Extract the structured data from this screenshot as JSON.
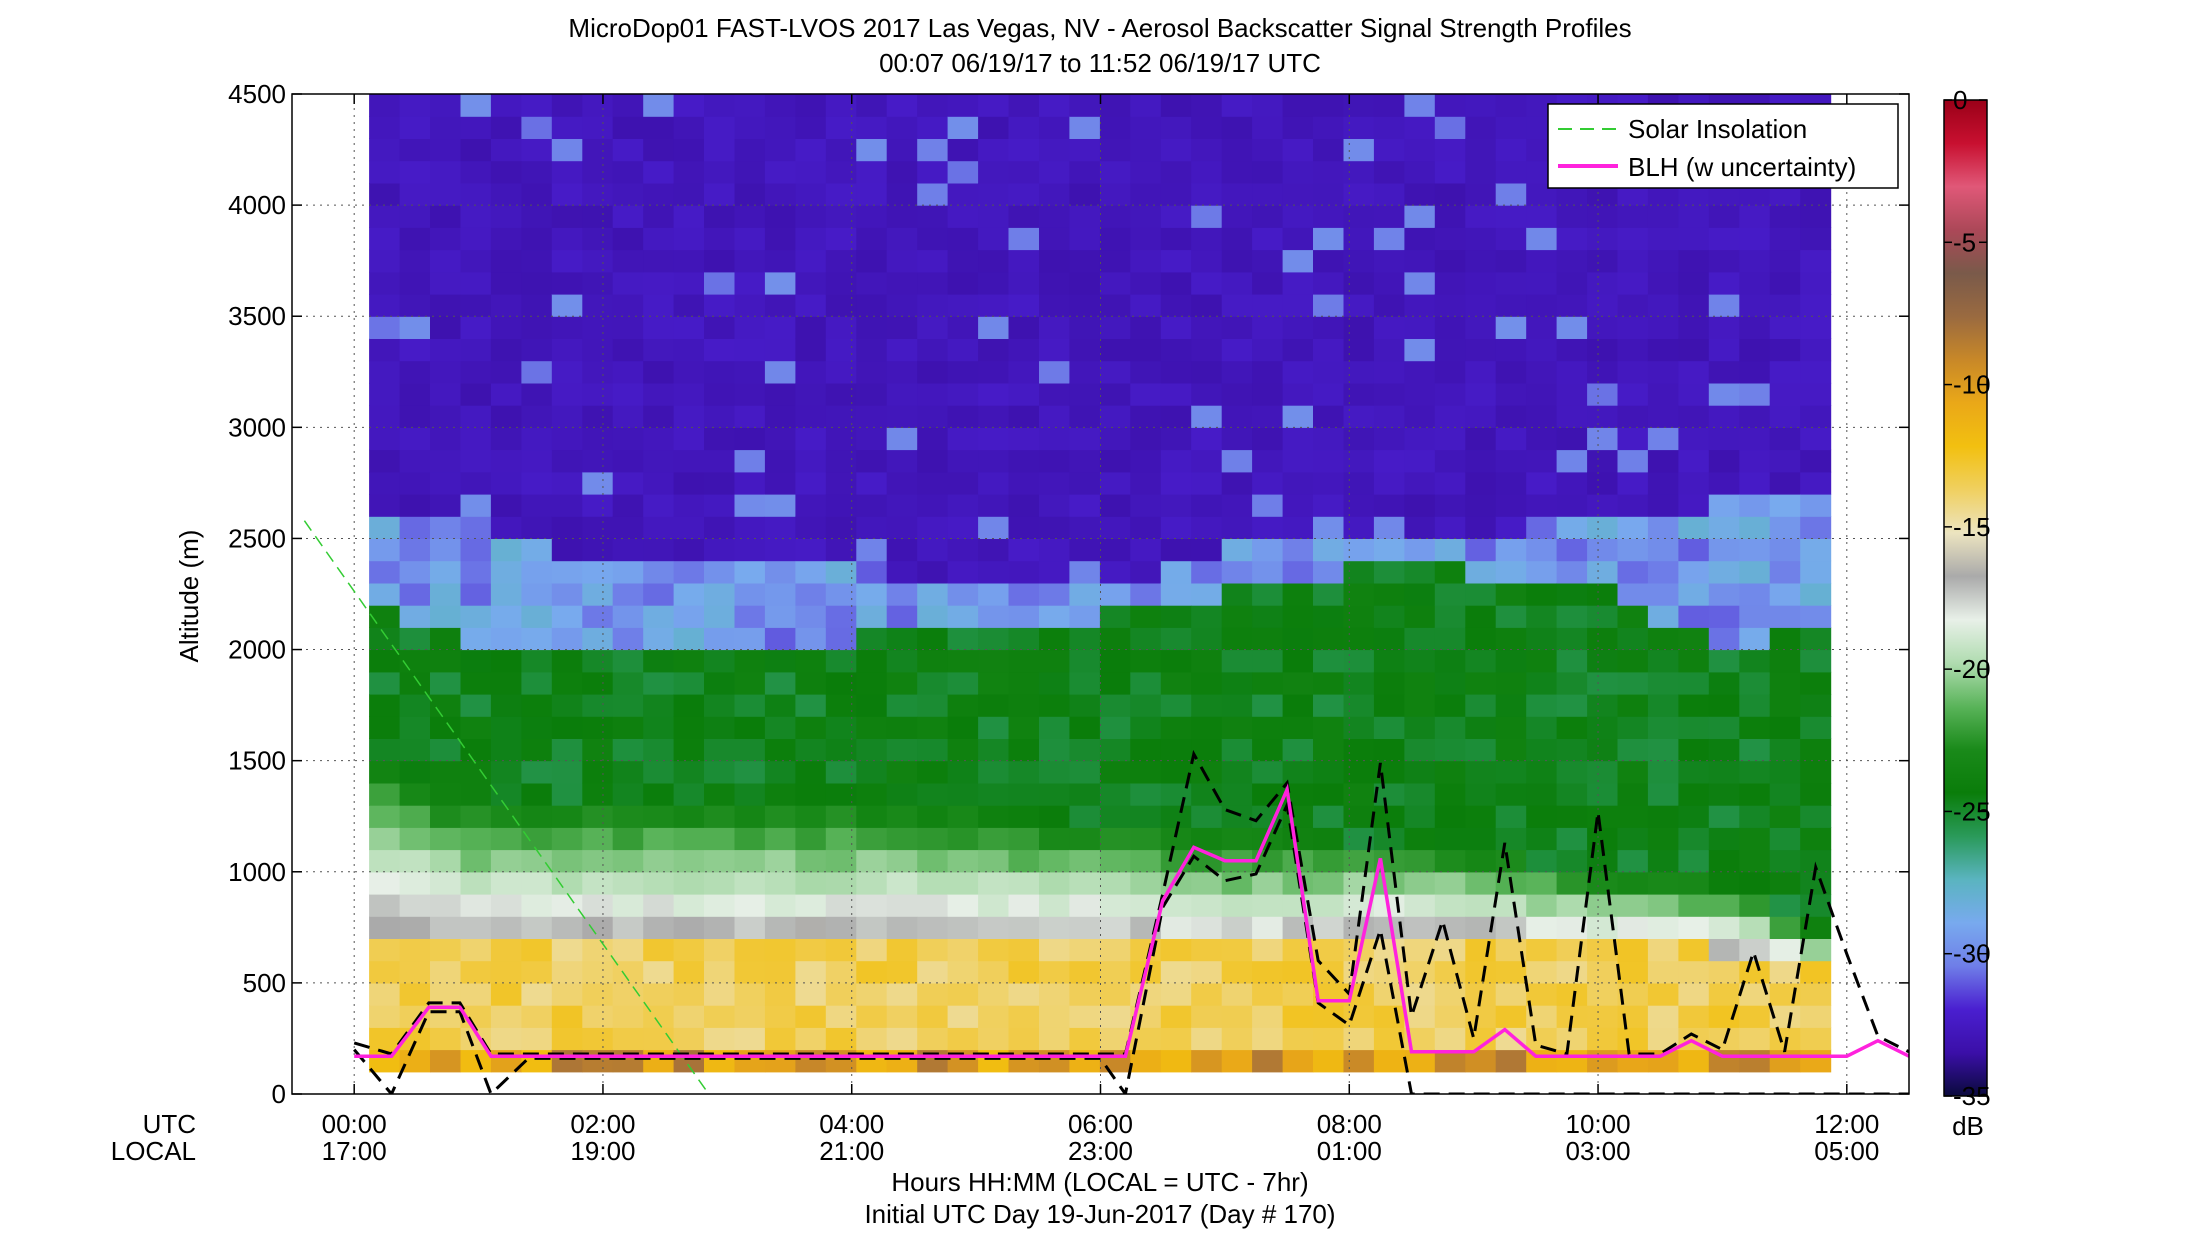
{
  "chart_data": {
    "type": "heatmap",
    "title_line1": "MicroDop01 FAST-LVOS 2017 Las Vegas, NV - Aerosol Backscatter Signal Strength Profiles",
    "title_line2": "00:07 06/19/17 to 11:52 06/19/17  UTC",
    "ylabel": "Altitude (m)",
    "xlabel": "Hours HH:MM  (LOCAL = UTC - 7hr)",
    "subtitle": "Initial UTC Day 19-Jun-2017 (Day # 170)",
    "utc_row_label": "UTC",
    "local_row_label": "LOCAL",
    "xlim_hours": [
      -0.5,
      12.5
    ],
    "ylim": [
      0,
      4500
    ],
    "grid": true,
    "y_ticks": [
      0,
      500,
      1000,
      1500,
      2000,
      2500,
      3000,
      3500,
      4000,
      4500
    ],
    "x_ticks": [
      {
        "hour": 0,
        "utc": "00:00",
        "local": "17:00"
      },
      {
        "hour": 2,
        "utc": "02:00",
        "local": "19:00"
      },
      {
        "hour": 4,
        "utc": "04:00",
        "local": "21:00"
      },
      {
        "hour": 6,
        "utc": "06:00",
        "local": "23:00"
      },
      {
        "hour": 8,
        "utc": "08:00",
        "local": "01:00"
      },
      {
        "hour": 10,
        "utc": "10:00",
        "local": "03:00"
      },
      {
        "hour": 12,
        "utc": "12:00",
        "local": "05:00"
      }
    ],
    "data_start_hour": 0.12,
    "data_end_hour": 11.87,
    "range_gate_m": 100,
    "lowest_gate_m": 100,
    "top_gate_m": 4500,
    "profile_columns": 48,
    "layers_m": {
      "times_hours": [
        0.12,
        1.0,
        2.0,
        3.0,
        4.0,
        5.0,
        6.0,
        7.0,
        8.0,
        9.0,
        10.0,
        11.0,
        11.87
      ],
      "aerosol_top": [
        2600,
        2550,
        2400,
        2420,
        2380,
        2300,
        2250,
        2450,
        2450,
        2500,
        2600,
        2650,
        2650
      ],
      "green_top": [
        2200,
        2000,
        1950,
        2000,
        2050,
        2050,
        2150,
        2250,
        2350,
        2350,
        2300,
        2000,
        2100
      ],
      "neutral_top": [
        1500,
        1300,
        1300,
        1300,
        1300,
        1250,
        1200,
        1150,
        1150,
        1100,
        1000,
        950,
        700
      ],
      "orange_top": [
        750,
        700,
        700,
        700,
        700,
        700,
        700,
        650,
        700,
        700,
        650,
        650,
        550
      ]
    },
    "colorbar": {
      "min": -35,
      "max": 0,
      "ticks": [
        0,
        -5,
        -10,
        -15,
        -20,
        -25,
        -30,
        -35
      ],
      "unit": "dB",
      "colors": [
        "#0a0a3c",
        "#3b0fa8",
        "#4a1fd0",
        "#6f7ee8",
        "#78aaee",
        "#5ab4c0",
        "#2a9a5a",
        "#0a7d0a",
        "#1a8a1a",
        "#5ab45a",
        "#b0dcb0",
        "#e8f0e8",
        "#aaaaaa",
        "#ece4c0",
        "#f0d060",
        "#f2c010",
        "#eaa818",
        "#c88828",
        "#9a6a40",
        "#7a5a4a",
        "#ac4858",
        "#e05878",
        "#c81030",
        "#9a0018"
      ]
    },
    "legend": {
      "placement": "top-right",
      "entries": [
        {
          "label": "Solar Insolation",
          "color": "#33cc33",
          "style": "dashed"
        },
        {
          "label": "BLH (w uncertainty)",
          "color": "#ff22dd",
          "style": "solid"
        }
      ]
    },
    "blh": {
      "x": [
        0.0,
        0.3,
        0.6,
        0.85,
        1.1,
        1.4,
        2.0,
        3.0,
        4.0,
        5.0,
        6.0,
        6.2,
        6.5,
        6.75,
        7.0,
        7.25,
        7.5,
        7.75,
        8.0,
        8.25,
        8.5,
        8.75,
        9.0,
        9.25,
        9.5,
        9.75,
        10.0,
        10.25,
        10.5,
        10.75,
        11.0,
        11.25,
        11.5,
        11.75,
        12.0,
        12.25,
        12.5
      ],
      "y": [
        170,
        170,
        390,
        390,
        170,
        170,
        170,
        170,
        170,
        170,
        170,
        170,
        870,
        1110,
        1050,
        1050,
        1370,
        420,
        420,
        1060,
        190,
        190,
        190,
        290,
        170,
        170,
        170,
        170,
        170,
        240,
        170,
        170,
        170,
        170,
        170,
        240,
        170
      ]
    },
    "blh_upper": {
      "x": [
        0.0,
        0.3,
        0.6,
        0.85,
        1.1,
        1.4,
        2.0,
        3.0,
        4.0,
        5.0,
        6.0,
        6.2,
        6.5,
        6.75,
        7.0,
        7.25,
        7.5,
        7.75,
        8.0,
        8.25,
        8.5,
        8.75,
        9.0,
        9.25,
        9.5,
        9.75,
        10.0,
        10.25,
        10.5,
        10.75,
        11.0,
        11.25,
        11.5,
        11.75,
        12.0,
        12.25,
        12.5
      ],
      "y": [
        230,
        180,
        410,
        410,
        180,
        180,
        180,
        180,
        180,
        180,
        180,
        180,
        900,
        1530,
        1280,
        1230,
        1400,
        600,
        450,
        1490,
        350,
        780,
        250,
        1130,
        220,
        180,
        1270,
        180,
        180,
        270,
        200,
        640,
        190,
        1020,
        630,
        260,
        190
      ]
    },
    "blh_lower": {
      "x": [
        0.0,
        0.3,
        0.6,
        0.85,
        1.1,
        1.4,
        2.0,
        3.0,
        4.0,
        5.0,
        6.0,
        6.2,
        6.5,
        6.75,
        7.0,
        7.25,
        7.5,
        7.75,
        8.0,
        8.25,
        8.5,
        8.75,
        9.0,
        9.25,
        9.5,
        9.75,
        10.0,
        10.25,
        10.5,
        10.75,
        11.0,
        11.25,
        11.5,
        11.75,
        12.0,
        12.25,
        12.5
      ],
      "y": [
        200,
        0,
        370,
        370,
        0,
        160,
        160,
        160,
        160,
        160,
        160,
        0,
        840,
        1070,
        960,
        990,
        1300,
        410,
        310,
        740,
        0,
        0,
        0,
        0,
        0,
        0,
        0,
        0,
        0,
        0,
        0,
        0,
        0,
        0,
        0,
        0,
        0
      ]
    },
    "solar_insolation": {
      "x": [
        -0.4,
        2.85
      ],
      "y": [
        2580,
        0
      ]
    }
  }
}
